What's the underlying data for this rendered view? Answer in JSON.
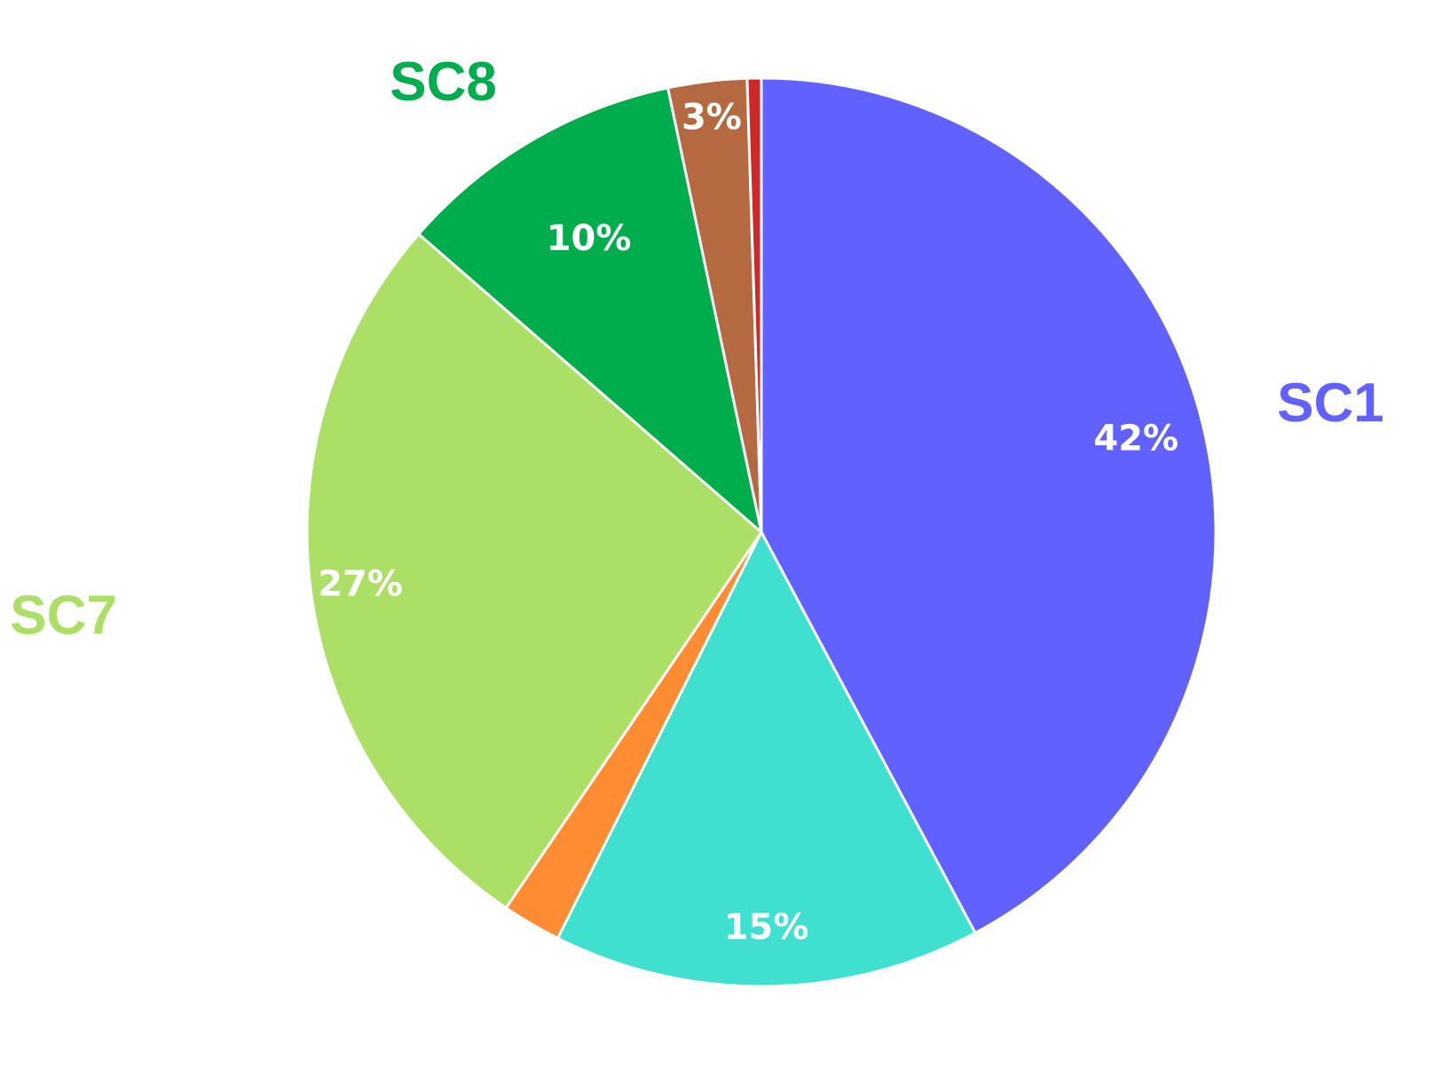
{
  "chart_data": {
    "type": "pie",
    "title": "",
    "start_angle_deg": 0,
    "direction": "clockwise",
    "slices": [
      {
        "label": "SC1",
        "value": 42.2,
        "value_label": "42%",
        "color": "#6161ff",
        "label_color": "#6161ff"
      },
      {
        "label": "",
        "value": 15.2,
        "value_label": "15%",
        "color": "#40e0d0",
        "label_color": ""
      },
      {
        "label": "",
        "value": 2.1,
        "value_label": "",
        "color": "#ff8c33",
        "label_color": ""
      },
      {
        "label": "SC7",
        "value": 26.9,
        "value_label": "27%",
        "color": "#acdf65",
        "label_color": "#acdf65"
      },
      {
        "label": "SC8",
        "value": 10.3,
        "value_label": "10%",
        "color": "#00ad4c",
        "label_color": "#00ad4c"
      },
      {
        "label": "",
        "value": 2.8,
        "value_label": "3%",
        "color": "#b56941",
        "label_color": ""
      },
      {
        "label": "",
        "value": 0.5,
        "value_label": "",
        "color": "#cc2a2a",
        "label_color": ""
      }
    ]
  }
}
